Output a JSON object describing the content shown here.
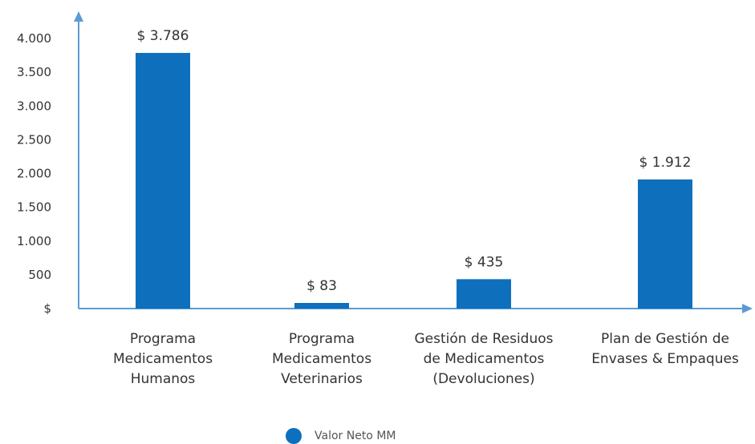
{
  "chart_data": {
    "type": "bar",
    "categories": [
      "Programa\nMedicamentos\nHumanos",
      "Programa\nMedicamentos\nVeterinarios",
      "Gestión de Residuos\nde Medicamentos\n(Devoluciones)",
      "Plan de Gestión de\nEnvases & Empaques"
    ],
    "series": [
      {
        "name": "Valor Neto MM",
        "values": [
          3786,
          83,
          435,
          1912
        ],
        "color": "#0e6fbd"
      }
    ],
    "data_labels": [
      "$ 3.786",
      "$ 83",
      "$ 435",
      "$ 1.912"
    ],
    "yticks": [
      0,
      500,
      1000,
      1500,
      2000,
      2500,
      3000,
      3500,
      4000
    ],
    "ytick_labels": [
      "$",
      "500",
      "1.000",
      "1.500",
      "2.000",
      "2.500",
      "3.000",
      "3.500",
      "4.000"
    ],
    "ylim": [
      0,
      4000
    ],
    "legend_position": "bottom-center",
    "axis_color": "#5b9bd5",
    "grid": false
  }
}
